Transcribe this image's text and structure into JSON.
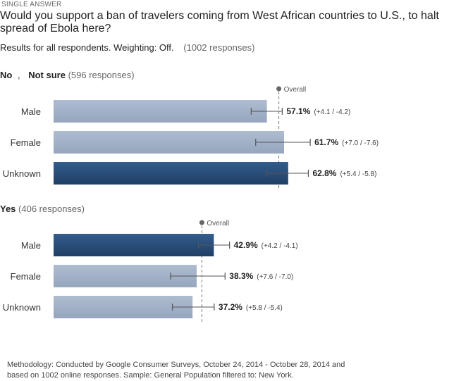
{
  "header": {
    "type_label": "SINGLE ANSWER",
    "question": "Would you support a ban of travelers coming from West African countries to U.S., to halt spread of Ebola here?",
    "results_text": "Results for all respondents. Weighting: Off.",
    "responses_text": "(1002 responses)"
  },
  "chart_data": {
    "type": "bar",
    "orientation": "horizontal",
    "overall_label": "Overall",
    "groups": [
      {
        "title_parts": [
          "No",
          ",",
          "Not sure"
        ],
        "responses": "(596 responses)",
        "overall": 60.3,
        "categories": [
          "Male",
          "Female",
          "Unknown"
        ],
        "values": [
          57.1,
          61.7,
          62.8
        ],
        "value_labels": [
          "57.1%",
          "61.7%",
          "62.8%"
        ],
        "ci_plus": [
          4.1,
          7.0,
          5.4
        ],
        "ci_minus": [
          4.2,
          7.6,
          5.8
        ],
        "ci_labels": [
          "(+4.1 / -4.2)",
          "(+7.0 / -7.6)",
          "(+5.4 / -5.8)"
        ],
        "highlight": [
          false,
          false,
          true
        ]
      },
      {
        "title_parts": [
          "Yes"
        ],
        "responses": "(406 responses)",
        "overall": 39.7,
        "categories": [
          "Male",
          "Female",
          "Unknown"
        ],
        "values": [
          42.9,
          38.3,
          37.2
        ],
        "value_labels": [
          "42.9%",
          "38.3%",
          "37.2%"
        ],
        "ci_plus": [
          4.2,
          7.6,
          5.8
        ],
        "ci_minus": [
          4.1,
          7.0,
          5.4
        ],
        "ci_labels": [
          "(+4.2 / -4.1)",
          "(+7.6 / -7.0)",
          "(+5.8 / -5.4)"
        ],
        "highlight": [
          true,
          false,
          false
        ]
      }
    ],
    "colors": {
      "bar": "#a2b1c6",
      "bar_highlight": "#2d5380",
      "bar_highlight_dark": "#1e3f66",
      "error": "#555555",
      "overall_line": "#777777"
    }
  },
  "footer": {
    "methodology": "Methodology: Conducted by Google Consumer Surveys, October 24, 2014 - October 28, 2014 and based on 1002 online responses. Sample: General Population filtered to: New York."
  }
}
